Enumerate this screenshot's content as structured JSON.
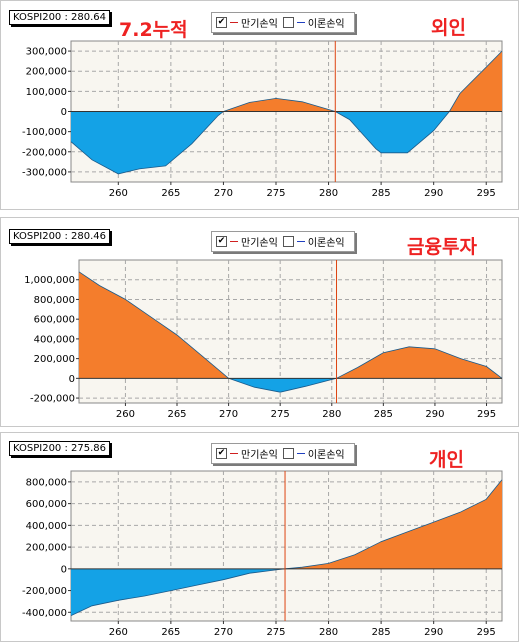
{
  "colors": {
    "positive_fill": "#f47d2c",
    "negative_fill": "#14a2e6",
    "plot_bg": "#f8f6f0",
    "grid": "#a8a8a8",
    "zero_line": "#333333",
    "current_line": "#dd4411"
  },
  "legend": {
    "checked_mark": "✔",
    "expiry_label": "만기손익",
    "theory_label": "이론손익"
  },
  "chart_data": [
    {
      "type": "area",
      "kospi_label": "KOSPI200 : 280.64",
      "annotation_left": "7.2누적",
      "annotation_right": "외인",
      "current_x": 280.64,
      "xlim": [
        255.5,
        296.5
      ],
      "ylim": [
        -350000,
        350000
      ],
      "xticks": [
        260,
        265,
        270,
        275,
        280,
        285,
        290,
        295
      ],
      "yticks": [
        300000,
        200000,
        100000,
        0,
        -100000,
        -200000,
        -300000
      ],
      "ytick_labels": [
        "300,000",
        "200,000",
        "100,000",
        "0",
        "-100,000",
        "-200,000",
        "-300,000"
      ],
      "grid": true,
      "legend_position": "top",
      "x": [
        255.5,
        257.5,
        260,
        262,
        264.5,
        267,
        269.5,
        270,
        272.5,
        275,
        277.5,
        280.64,
        282,
        284.5,
        285,
        287.5,
        290,
        291.5,
        292.5,
        295,
        296.5
      ],
      "y": [
        -150000,
        -240000,
        -310000,
        -285000,
        -270000,
        -160000,
        -20000,
        0,
        45000,
        65000,
        48000,
        0,
        -40000,
        -185000,
        -205000,
        -205000,
        -95000,
        0,
        90000,
        220000,
        300000
      ]
    },
    {
      "type": "area",
      "kospi_label": "KOSPI200 : 280.46",
      "annotation_left": "",
      "annotation_right": "금융투자",
      "current_x": 280.46,
      "xlim": [
        255.5,
        296.5
      ],
      "ylim": [
        -250000,
        1200000
      ],
      "xticks": [
        260,
        265,
        270,
        275,
        280,
        285,
        290,
        295
      ],
      "yticks": [
        1000000,
        800000,
        600000,
        400000,
        200000,
        0,
        -200000
      ],
      "ytick_labels": [
        "1,000,000",
        "800,000",
        "600,000",
        "400,000",
        "200,000",
        "0",
        "-200,000"
      ],
      "grid": true,
      "legend_position": "top",
      "x": [
        255.5,
        257.5,
        260,
        262.5,
        265,
        267.5,
        270,
        272.5,
        275,
        277.5,
        280.46,
        282.5,
        285,
        287.5,
        290,
        292.5,
        295,
        296.5
      ],
      "y": [
        1080000,
        940000,
        800000,
        620000,
        440000,
        220000,
        0,
        -90000,
        -140000,
        -80000,
        0,
        110000,
        260000,
        320000,
        300000,
        200000,
        120000,
        0
      ]
    },
    {
      "type": "area",
      "kospi_label": "KOSPI200 : 275.86",
      "annotation_left": "",
      "annotation_right": "개인",
      "current_x": 275.86,
      "xlim": [
        255.5,
        296.5
      ],
      "ylim": [
        -480000,
        900000
      ],
      "xticks": [
        260,
        265,
        270,
        275,
        280,
        285,
        290,
        295
      ],
      "yticks": [
        800000,
        600000,
        400000,
        200000,
        0,
        -200000,
        -400000
      ],
      "ytick_labels": [
        "800,000",
        "600,000",
        "400,000",
        "200,000",
        "0",
        "-200,000",
        "-400,000"
      ],
      "grid": true,
      "legend_position": "top",
      "x": [
        255.5,
        257.5,
        260,
        262.5,
        265,
        267.5,
        270,
        272.5,
        275,
        275.86,
        277.5,
        280,
        282.5,
        285,
        287.5,
        290,
        292.5,
        295,
        296.5
      ],
      "y": [
        -430000,
        -340000,
        -290000,
        -250000,
        -200000,
        -150000,
        -100000,
        -40000,
        -10000,
        0,
        15000,
        50000,
        130000,
        250000,
        340000,
        430000,
        520000,
        640000,
        820000
      ]
    }
  ]
}
